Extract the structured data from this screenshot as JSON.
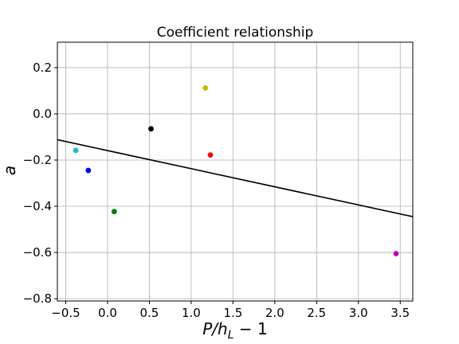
{
  "chart_data": {
    "type": "scatter",
    "title": "Coefficient relationship",
    "xlabel_main": "P/h",
    "xlabel_sub": "L",
    "xlabel_tail": " − 1",
    "ylabel": "a",
    "xlim": [
      -0.6,
      3.65
    ],
    "ylim": [
      -0.81,
      0.31
    ],
    "grid": true,
    "xticks": [
      -0.5,
      0.0,
      0.5,
      1.0,
      1.5,
      2.0,
      2.5,
      3.0,
      3.5
    ],
    "xtick_labels": [
      "−0.5",
      "0.0",
      "0.5",
      "1.0",
      "1.5",
      "2.0",
      "2.5",
      "3.0",
      "3.5"
    ],
    "yticks": [
      0.2,
      0.0,
      -0.2,
      -0.4,
      -0.6,
      -0.8
    ],
    "ytick_labels": [
      "0.2",
      "0.0",
      "−0.2",
      "−0.4",
      "−0.6",
      "−0.8"
    ],
    "points": [
      {
        "x": -0.38,
        "y": -0.158,
        "color": "#17becf"
      },
      {
        "x": -0.23,
        "y": -0.245,
        "color": "#0000ff"
      },
      {
        "x": 0.08,
        "y": -0.423,
        "color": "#008000"
      },
      {
        "x": 0.52,
        "y": -0.065,
        "color": "#000000"
      },
      {
        "x": 1.17,
        "y": 0.112,
        "color": "#bfbf00"
      },
      {
        "x": 1.23,
        "y": -0.178,
        "color": "#ff0000"
      },
      {
        "x": 3.45,
        "y": -0.605,
        "color": "#bf00bf"
      }
    ],
    "fit_line": {
      "x": [
        -0.6,
        3.65
      ],
      "y": [
        -0.112,
        -0.445
      ],
      "color": "#000000"
    }
  }
}
